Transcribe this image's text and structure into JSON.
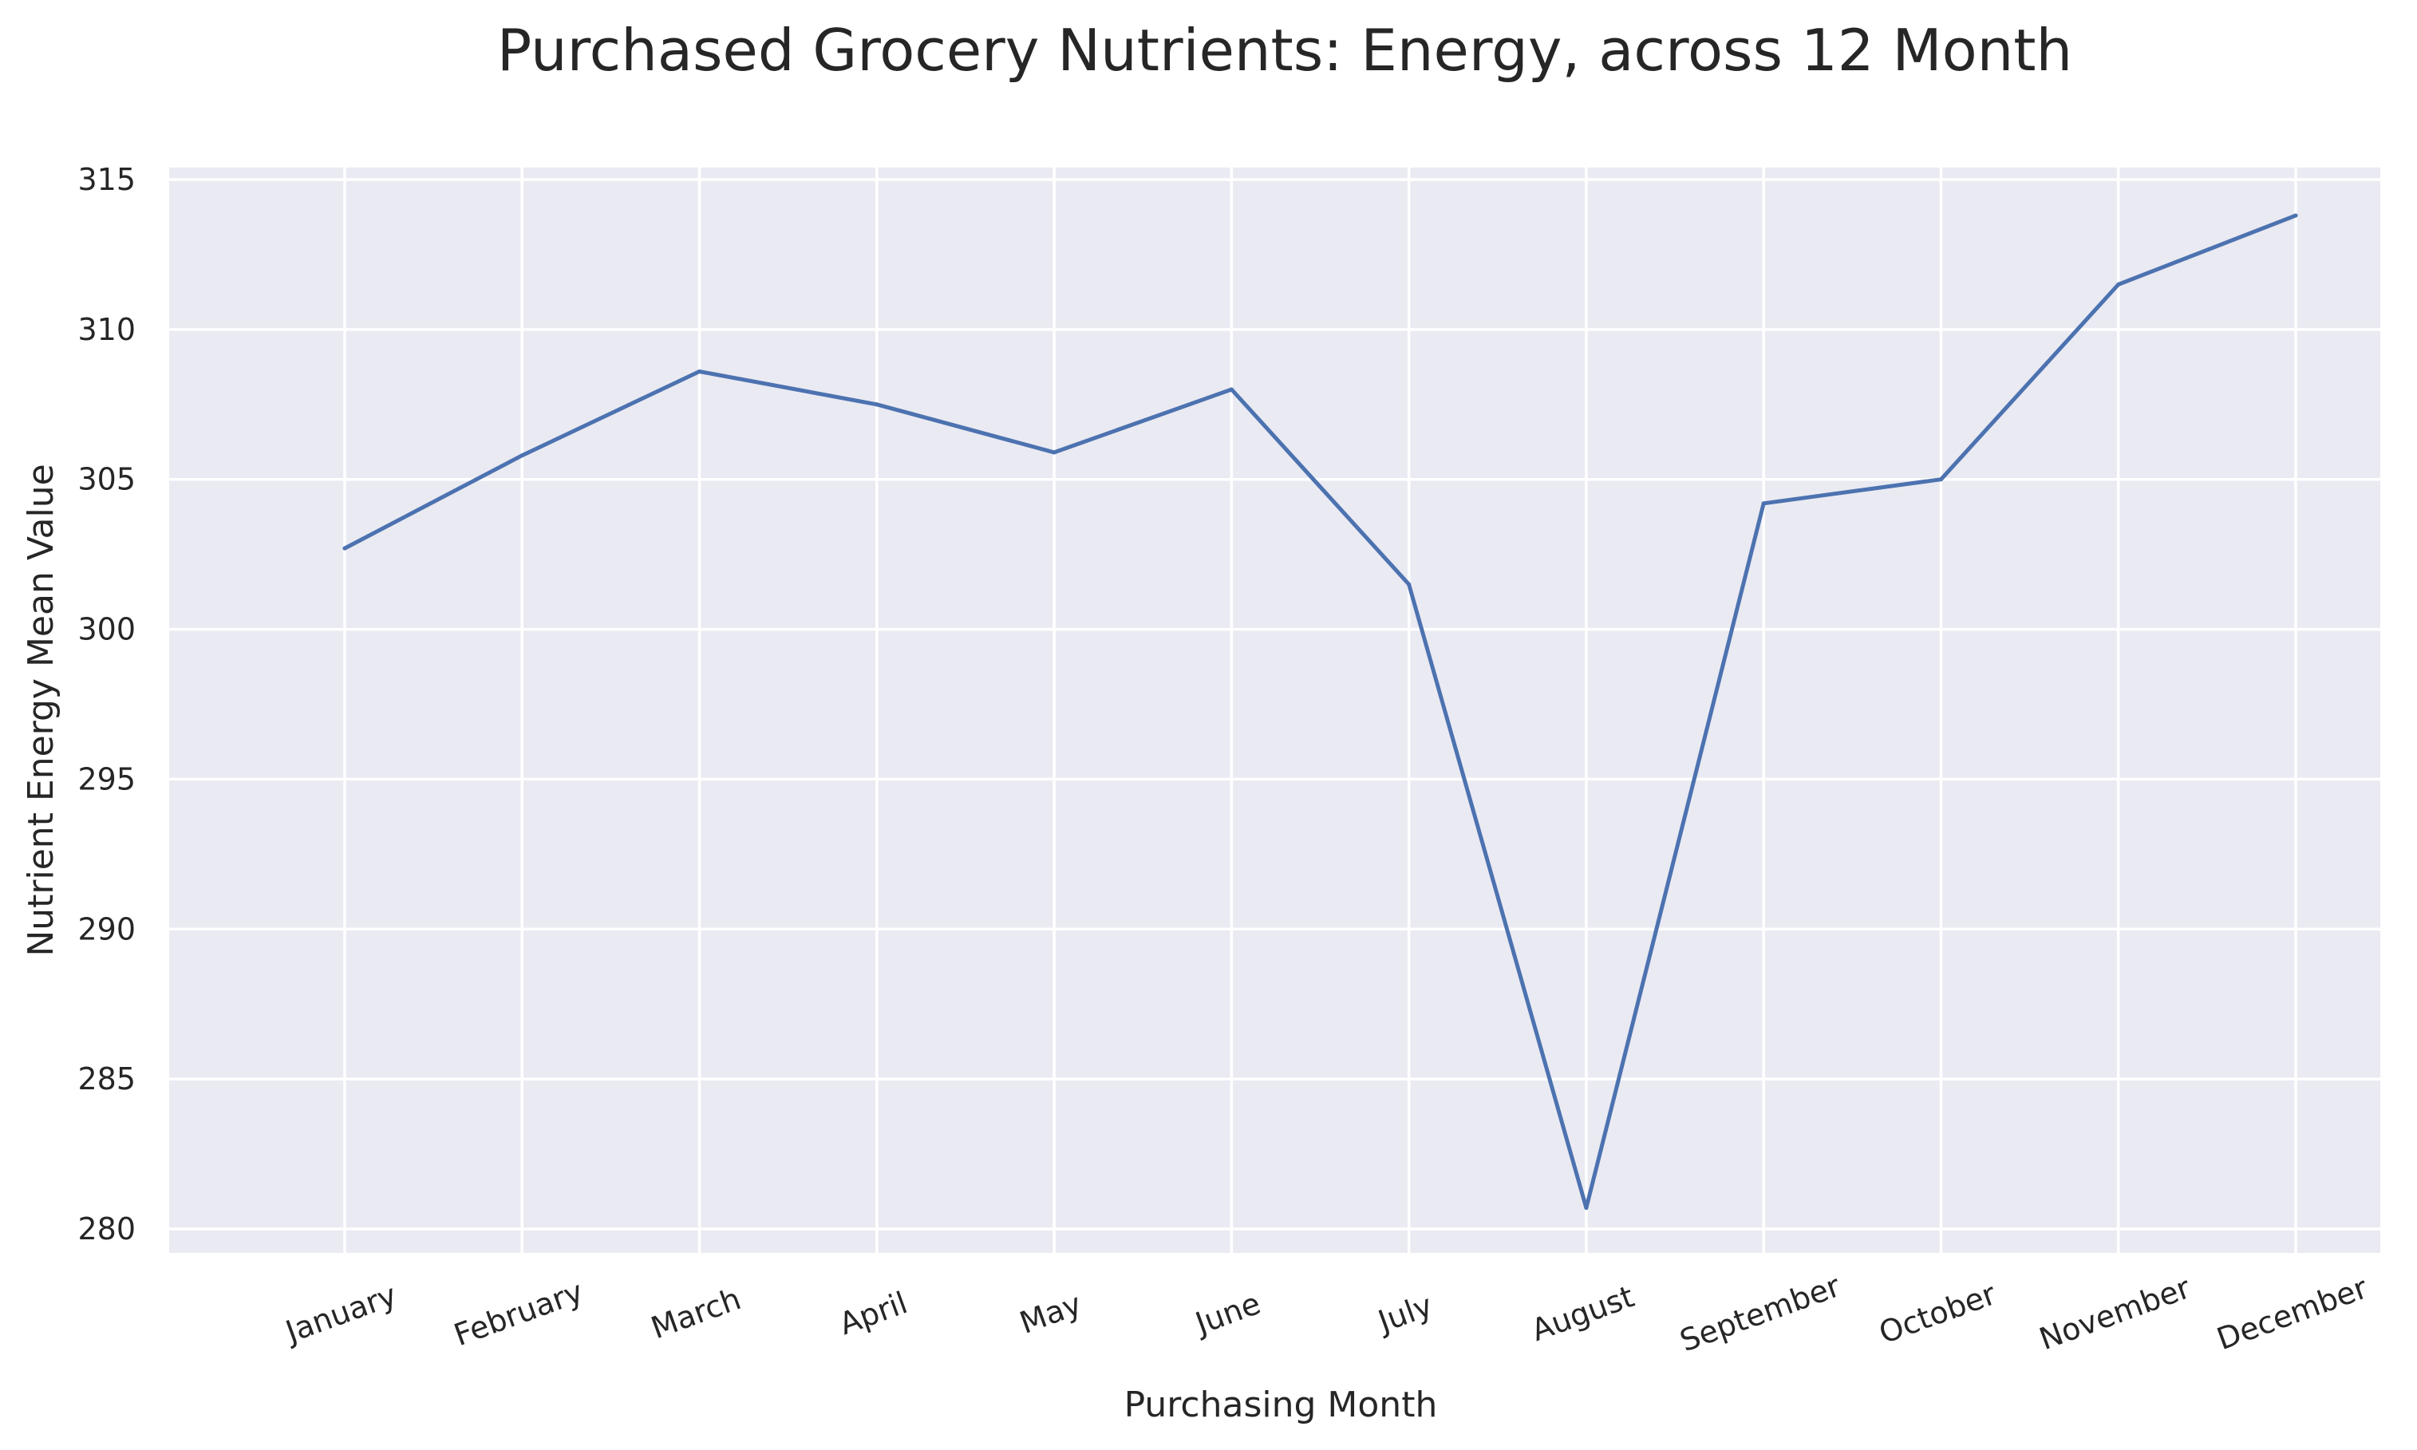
{
  "chart_data": {
    "type": "line",
    "title": "Purchased Grocery Nutrients: Energy, across 12 Month",
    "xlabel": "Purchasing Month",
    "ylabel": "Nutrient Energy  Mean Value",
    "categories": [
      "January",
      "February",
      "March",
      "April",
      "May",
      "June",
      "July",
      "August",
      "September",
      "October",
      "November",
      "December"
    ],
    "series": [
      {
        "values": [
          302.7,
          305.8,
          308.6,
          307.5,
          305.9,
          308.0,
          301.5,
          280.7,
          304.2,
          305.0,
          311.5,
          313.8
        ]
      }
    ],
    "ylim": [
      279.2,
      315.4
    ],
    "yticks": [
      280,
      285,
      290,
      295,
      300,
      305,
      310,
      315
    ],
    "grid": true,
    "legend": "none",
    "x_tick_rotation_deg": -20,
    "colors": {
      "line": "#4c72b0",
      "plot_background": "#eaeaf2",
      "grid": "#ffffff",
      "text": "#262626"
    }
  }
}
